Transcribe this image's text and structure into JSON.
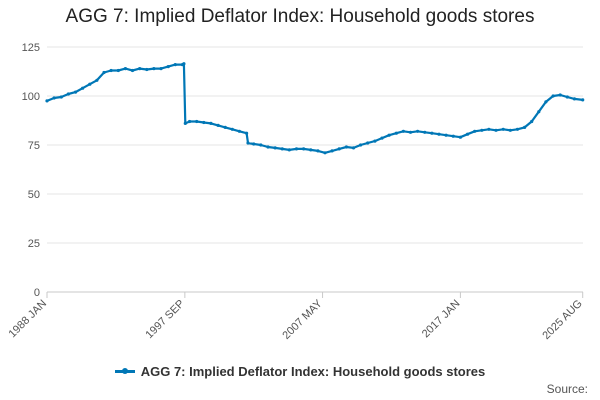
{
  "chart_data": {
    "type": "line",
    "title": "AGG 7: Implied Deflator Index: Household goods stores",
    "xlabel": "",
    "ylabel": "",
    "ylim": [
      0,
      125
    ],
    "yticks": [
      0,
      25,
      50,
      75,
      100,
      125
    ],
    "xlim": [
      1988.0,
      2025.6
    ],
    "xticks": [
      {
        "label": "1988 JAN",
        "value": 1988.0
      },
      {
        "label": "1997 SEP",
        "value": 1997.67
      },
      {
        "label": "2007 MAY",
        "value": 2007.33
      },
      {
        "label": "2017 JAN",
        "value": 2017.0
      },
      {
        "label": "2025 AUG",
        "value": 2025.58
      }
    ],
    "grid": true,
    "legend_position": "bottom",
    "series_color": "#0077b6",
    "series": [
      {
        "name": "AGG 7: Implied Deflator Index: Household goods stores",
        "points": [
          [
            1988.0,
            97.5
          ],
          [
            1988.5,
            99.0
          ],
          [
            1989.0,
            99.5
          ],
          [
            1989.5,
            101.0
          ],
          [
            1990.0,
            102.0
          ],
          [
            1990.5,
            104.0
          ],
          [
            1991.0,
            106.0
          ],
          [
            1991.5,
            108.0
          ],
          [
            1992.0,
            112.0
          ],
          [
            1992.5,
            113.0
          ],
          [
            1993.0,
            113.0
          ],
          [
            1993.5,
            114.0
          ],
          [
            1994.0,
            113.0
          ],
          [
            1994.5,
            114.0
          ],
          [
            1995.0,
            113.5
          ],
          [
            1995.5,
            114.0
          ],
          [
            1996.0,
            114.0
          ],
          [
            1996.5,
            115.0
          ],
          [
            1997.0,
            116.0
          ],
          [
            1997.5,
            116.0
          ],
          [
            1997.6,
            116.5
          ],
          [
            1997.7,
            86.0
          ],
          [
            1998.0,
            87.0
          ],
          [
            1998.5,
            87.0
          ],
          [
            1999.0,
            86.5
          ],
          [
            1999.5,
            86.0
          ],
          [
            2000.0,
            85.0
          ],
          [
            2000.5,
            84.0
          ],
          [
            2001.0,
            83.0
          ],
          [
            2001.5,
            82.0
          ],
          [
            2002.0,
            81.0
          ],
          [
            2002.1,
            76.0
          ],
          [
            2002.5,
            75.5
          ],
          [
            2003.0,
            75.0
          ],
          [
            2003.5,
            74.0
          ],
          [
            2004.0,
            73.5
          ],
          [
            2004.5,
            73.0
          ],
          [
            2005.0,
            72.5
          ],
          [
            2005.5,
            73.0
          ],
          [
            2006.0,
            73.0
          ],
          [
            2006.5,
            72.5
          ],
          [
            2007.0,
            72.0
          ],
          [
            2007.5,
            71.0
          ],
          [
            2008.0,
            72.0
          ],
          [
            2008.5,
            73.0
          ],
          [
            2009.0,
            74.0
          ],
          [
            2009.5,
            73.5
          ],
          [
            2010.0,
            75.0
          ],
          [
            2010.5,
            76.0
          ],
          [
            2011.0,
            77.0
          ],
          [
            2011.5,
            78.5
          ],
          [
            2012.0,
            80.0
          ],
          [
            2012.5,
            81.0
          ],
          [
            2013.0,
            82.0
          ],
          [
            2013.5,
            81.5
          ],
          [
            2014.0,
            82.0
          ],
          [
            2014.5,
            81.5
          ],
          [
            2015.0,
            81.0
          ],
          [
            2015.5,
            80.5
          ],
          [
            2016.0,
            80.0
          ],
          [
            2016.5,
            79.5
          ],
          [
            2017.0,
            79.0
          ],
          [
            2017.5,
            80.5
          ],
          [
            2018.0,
            82.0
          ],
          [
            2018.5,
            82.5
          ],
          [
            2019.0,
            83.0
          ],
          [
            2019.5,
            82.5
          ],
          [
            2020.0,
            83.0
          ],
          [
            2020.5,
            82.5
          ],
          [
            2021.0,
            83.0
          ],
          [
            2021.5,
            84.0
          ],
          [
            2022.0,
            87.0
          ],
          [
            2022.5,
            92.0
          ],
          [
            2023.0,
            97.0
          ],
          [
            2023.5,
            100.0
          ],
          [
            2024.0,
            100.5
          ],
          [
            2024.5,
            99.5
          ],
          [
            2025.0,
            98.5
          ],
          [
            2025.58,
            98.0
          ]
        ]
      }
    ]
  },
  "source_label": "Source:"
}
